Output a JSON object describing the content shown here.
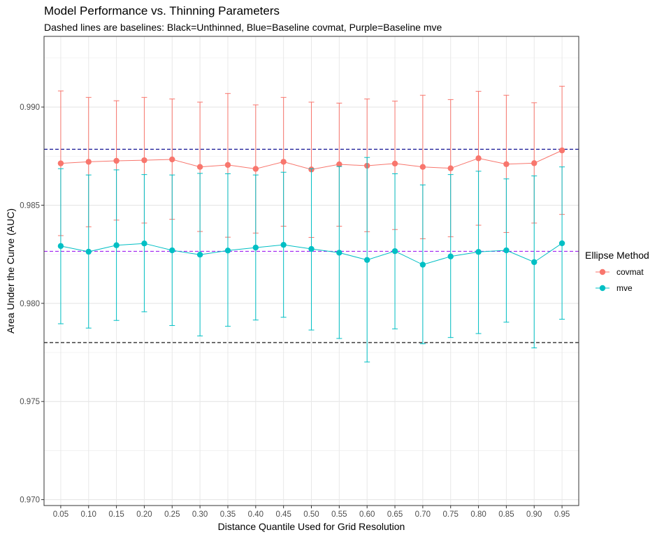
{
  "chart_data": {
    "type": "line",
    "title": "Model Performance vs. Thinning Parameters",
    "subtitle": "Dashed lines are baselines: Black=Unthinned, Blue=Baseline covmat, Purple=Baseline mve",
    "xlabel": "Distance Quantile Used for Grid Resolution",
    "ylabel": "Area Under the Curve (AUC)",
    "x": [
      "0.05",
      "0.10",
      "0.15",
      "0.20",
      "0.25",
      "0.30",
      "0.35",
      "0.40",
      "0.45",
      "0.50",
      "0.55",
      "0.60",
      "0.65",
      "0.70",
      "0.75",
      "0.80",
      "0.85",
      "0.90",
      "0.95"
    ],
    "ylim": [
      0.9697,
      0.9936
    ],
    "yticks": [
      "0.970",
      "0.975",
      "0.980",
      "0.985",
      "0.990"
    ],
    "legend": {
      "title": "Ellipse Method",
      "position": "right"
    },
    "grid": true,
    "series": [
      {
        "name": "covmat",
        "color": "#F8766D",
        "values": [
          0.98713,
          0.98721,
          0.98726,
          0.98729,
          0.98733,
          0.98695,
          0.98705,
          0.98685,
          0.98721,
          0.98682,
          0.98708,
          0.98701,
          0.98712,
          0.98695,
          0.98688,
          0.98739,
          0.98709,
          0.98714,
          0.98779
        ],
        "lower": [
          0.98345,
          0.9839,
          0.98424,
          0.98409,
          0.98428,
          0.98366,
          0.98337,
          0.98358,
          0.98393,
          0.98336,
          0.98393,
          0.98365,
          0.98376,
          0.98329,
          0.98339,
          0.98398,
          0.98361,
          0.98409,
          0.98453
        ],
        "upper": [
          0.99082,
          0.99049,
          0.99032,
          0.99049,
          0.99041,
          0.99025,
          0.99069,
          0.99011,
          0.99049,
          0.99025,
          0.9902,
          0.99041,
          0.9903,
          0.9906,
          0.99038,
          0.9908,
          0.9906,
          0.99022,
          0.99106
        ]
      },
      {
        "name": "mve",
        "color": "#00BFC4",
        "values": [
          0.98292,
          0.98263,
          0.98296,
          0.98305,
          0.9827,
          0.98248,
          0.98269,
          0.98284,
          0.98298,
          0.98277,
          0.98258,
          0.98221,
          0.98266,
          0.98197,
          0.98239,
          0.98262,
          0.9827,
          0.9821,
          0.98306
        ],
        "lower": [
          0.97896,
          0.97874,
          0.97913,
          0.97957,
          0.97887,
          0.97834,
          0.97883,
          0.97915,
          0.97929,
          0.97864,
          0.97821,
          0.97701,
          0.9787,
          0.97794,
          0.97826,
          0.97846,
          0.97904,
          0.97773,
          0.97919
        ],
        "upper": [
          0.98686,
          0.98654,
          0.9868,
          0.98656,
          0.98654,
          0.98662,
          0.9866,
          0.98654,
          0.98668,
          0.98686,
          0.98697,
          0.98743,
          0.9866,
          0.98603,
          0.98656,
          0.98673,
          0.98634,
          0.98649,
          0.98695
        ]
      }
    ],
    "baselines": [
      {
        "name": "Unthinned",
        "color": "#000000",
        "value": 0.978
      },
      {
        "name": "Baseline covmat",
        "color": "#00008B",
        "value": 0.98785
      },
      {
        "name": "Baseline mve",
        "color": "#A020F0",
        "value": 0.98265
      }
    ]
  }
}
